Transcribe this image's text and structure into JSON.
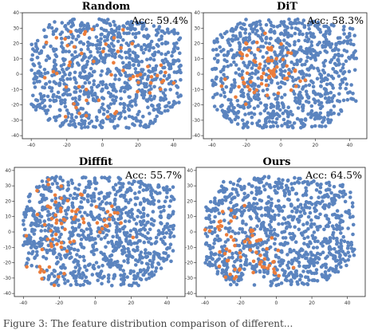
{
  "chart_data": [
    {
      "type": "scatter",
      "title": "Random",
      "annotation": "Acc: 59.4%",
      "xlim": [
        -45,
        50
      ],
      "ylim": [
        -42,
        40
      ],
      "xticks": [
        -40,
        -20,
        0,
        20,
        40
      ],
      "yticks": [
        -40,
        -30,
        -20,
        -10,
        0,
        10,
        20,
        30,
        40
      ],
      "xtick_labels": [
        "-40",
        "-20",
        "0",
        "20",
        "40"
      ],
      "ytick_labels": [
        "-40",
        "-30",
        "-20",
        "-10",
        "0",
        "10",
        "20",
        "30",
        "40"
      ],
      "colors": {
        "base": "#5b84bf",
        "highlight": "#eb7d3c"
      },
      "n_base": 900,
      "n_highlight": 60,
      "seed": 11,
      "highlight_regions": "scattered"
    },
    {
      "type": "scatter",
      "title": "DiT",
      "annotation": "Acc: 58.3%",
      "xlim": [
        -45,
        50
      ],
      "ylim": [
        -42,
        40
      ],
      "xticks": [
        -40,
        -20,
        0,
        20,
        40
      ],
      "yticks": [
        -40,
        -30,
        -20,
        -10,
        0,
        10,
        20,
        30,
        40
      ],
      "xtick_labels": [
        "-40",
        "-20",
        "0",
        "20",
        "40"
      ],
      "ytick_labels": [
        "-40",
        "-30",
        "-20",
        "-10",
        "0",
        "10",
        "20",
        "30",
        "40"
      ],
      "colors": {
        "base": "#5b84bf",
        "highlight": "#eb7d3c"
      },
      "n_base": 900,
      "n_highlight": 70,
      "seed": 23,
      "highlight_regions": "center-left"
    },
    {
      "type": "scatter",
      "title": "Difffit",
      "annotation": "Acc: 55.7%",
      "xlim": [
        -45,
        50
      ],
      "ylim": [
        -42,
        42
      ],
      "xticks": [
        -40,
        -20,
        0,
        20,
        40
      ],
      "yticks": [
        -40,
        -30,
        -20,
        -10,
        0,
        10,
        20,
        30,
        40
      ],
      "xtick_labels": [
        "-40",
        "-20",
        "0",
        "20",
        "40"
      ],
      "ytick_labels": [
        "-40",
        "-30",
        "-20",
        "-10",
        "0",
        "10",
        "20",
        "30",
        "40"
      ],
      "colors": {
        "base": "#5b84bf",
        "highlight": "#eb7d3c"
      },
      "n_base": 950,
      "n_highlight": 75,
      "seed": 37,
      "highlight_regions": "upper-left"
    },
    {
      "type": "scatter",
      "title": "Ours",
      "annotation": "Acc: 64.5%",
      "xlim": [
        -45,
        50
      ],
      "ylim": [
        -42,
        42
      ],
      "xticks": [
        -40,
        -20,
        0,
        20,
        40
      ],
      "yticks": [
        -40,
        -30,
        -20,
        -10,
        0,
        10,
        20,
        30,
        40
      ],
      "xtick_labels": [
        "-40",
        "-20",
        "0",
        "20",
        "40"
      ],
      "ytick_labels": [
        "-40",
        "-30",
        "-20",
        "-10",
        "0",
        "10",
        "20",
        "30",
        "40"
      ],
      "colors": {
        "base": "#5b84bf",
        "highlight": "#eb7d3c"
      },
      "n_base": 950,
      "n_highlight": 70,
      "seed": 53,
      "highlight_regions": "left-lower"
    }
  ],
  "caption": "Figure 3: The feature distribution comparison of different...",
  "background": "#ffffff"
}
